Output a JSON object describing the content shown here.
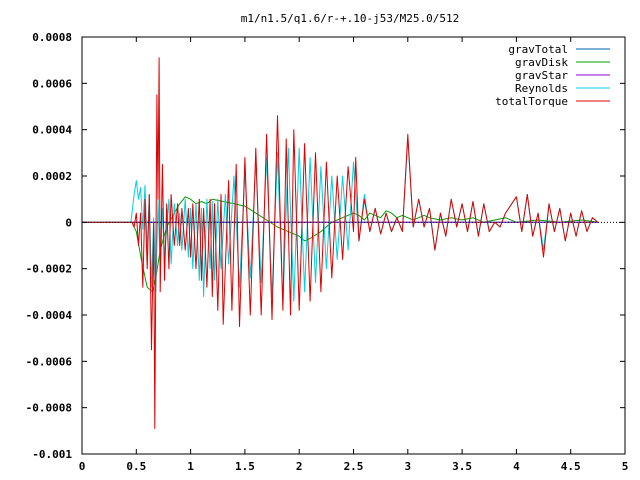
{
  "chart_data": {
    "type": "line",
    "title": "m1/n1.5/q1.6/r-+.10-j53/M25.0/512",
    "xlabel": "",
    "ylabel": "",
    "xlim": [
      0,
      5
    ],
    "ylim": [
      -0.001,
      0.0008
    ],
    "grid": false,
    "legend_position": "top-right",
    "x_ticks": [
      "0",
      "0.5",
      "1",
      "1.5",
      "2",
      "2.5",
      "3",
      "3.5",
      "4",
      "4.5",
      "5"
    ],
    "y_ticks": [
      "0.0008",
      "0.0006",
      "0.0004",
      "0.0002",
      "0",
      "-0.0002",
      "-0.0004",
      "-0.0006",
      "-0.0008",
      "-0.001"
    ],
    "series": [
      {
        "name": "gravTotal",
        "color": "#0060ad",
        "points": [
          [
            0,
            0
          ],
          [
            0.46,
            0
          ],
          [
            4.75,
            0
          ]
        ]
      },
      {
        "name": "gravDisk",
        "color": "#009e00",
        "points": [
          [
            0,
            0
          ],
          [
            0.46,
            0
          ],
          [
            0.5,
            -4e-05
          ],
          [
            0.55,
            -0.00017
          ],
          [
            0.6,
            -0.00028
          ],
          [
            0.65,
            -0.0003
          ],
          [
            0.68,
            -0.00024
          ],
          [
            0.72,
            -0.00012
          ],
          [
            0.78,
            -2e-05
          ],
          [
            0.85,
            4e-05
          ],
          [
            0.9,
            8e-05
          ],
          [
            0.95,
            0.00011
          ],
          [
            1.0,
            0.0001
          ],
          [
            1.05,
            8e-05
          ],
          [
            1.1,
            9e-05
          ],
          [
            1.15,
            8e-05
          ],
          [
            1.2,
            0.0001
          ],
          [
            1.3,
            9e-05
          ],
          [
            1.4,
            8e-05
          ],
          [
            1.5,
            7e-05
          ],
          [
            1.6,
            4e-05
          ],
          [
            1.7,
            1e-05
          ],
          [
            1.8,
            -2e-05
          ],
          [
            1.9,
            -4e-05
          ],
          [
            2.0,
            -6e-05
          ],
          [
            2.05,
            -8e-05
          ],
          [
            2.1,
            -7e-05
          ],
          [
            2.2,
            -4e-05
          ],
          [
            2.3,
            0.0
          ],
          [
            2.4,
            2e-05
          ],
          [
            2.5,
            4e-05
          ],
          [
            2.55,
            3e-05
          ],
          [
            2.6,
            1e-05
          ],
          [
            2.65,
            4e-05
          ],
          [
            2.7,
            3e-05
          ],
          [
            2.75,
            2e-05
          ],
          [
            2.8,
            5e-05
          ],
          [
            2.85,
            4e-05
          ],
          [
            2.9,
            2e-05
          ],
          [
            2.95,
            3e-05
          ],
          [
            3.0,
            2e-05
          ],
          [
            3.05,
            1e-05
          ],
          [
            3.1,
            2e-05
          ],
          [
            3.15,
            3e-05
          ],
          [
            3.2,
            2e-05
          ],
          [
            3.3,
            1e-05
          ],
          [
            3.4,
            2e-05
          ],
          [
            3.5,
            1e-05
          ],
          [
            3.6,
            2e-05
          ],
          [
            3.7,
            0.0
          ],
          [
            3.8,
            1e-05
          ],
          [
            3.9,
            2e-05
          ],
          [
            4.0,
            0.0
          ],
          [
            4.2,
            1e-05
          ],
          [
            4.4,
            0.0
          ],
          [
            4.6,
            1e-05
          ],
          [
            4.75,
            0.0
          ]
        ]
      },
      {
        "name": "gravStar",
        "color": "#9400d3",
        "points": [
          [
            0,
            0
          ],
          [
            0.46,
            0
          ],
          [
            4.75,
            0
          ]
        ]
      },
      {
        "name": "Reynolds",
        "color": "#00d0e0",
        "points": [
          [
            0,
            0
          ],
          [
            0.45,
            0
          ],
          [
            0.48,
            0.00012
          ],
          [
            0.5,
            0.00018
          ],
          [
            0.52,
            0.0001
          ],
          [
            0.54,
            0.00015
          ],
          [
            0.56,
            -3e-05
          ],
          [
            0.58,
            0.00016
          ],
          [
            0.6,
            -0.00012
          ],
          [
            0.62,
            0.00012
          ],
          [
            0.64,
            -0.00028
          ],
          [
            0.66,
            2e-05
          ],
          [
            0.68,
            -0.0003
          ],
          [
            0.7,
            0.0001
          ],
          [
            0.72,
            -0.0002
          ],
          [
            0.74,
            6e-05
          ],
          [
            0.76,
            -0.00015
          ],
          [
            0.8,
            0.0001
          ],
          [
            0.82,
            -0.00018
          ],
          [
            0.85,
            8e-05
          ],
          [
            0.88,
            -0.0001
          ],
          [
            0.9,
            4e-05
          ],
          [
            0.92,
            -0.00012
          ],
          [
            0.95,
            0.0001
          ],
          [
            0.98,
            -0.00015
          ],
          [
            1.0,
            6e-05
          ],
          [
            1.02,
            -0.0002
          ],
          [
            1.05,
            8e-05
          ],
          [
            1.08,
            -0.00025
          ],
          [
            1.1,
            6e-05
          ],
          [
            1.12,
            -0.00032
          ],
          [
            1.15,
            0.0001
          ],
          [
            1.18,
            -0.0002
          ],
          [
            1.2,
            9e-05
          ],
          [
            1.22,
            -0.00025
          ],
          [
            1.25,
            0.0001
          ],
          [
            1.28,
            -0.0002
          ],
          [
            1.32,
            0.00012
          ],
          [
            1.35,
            -0.00018
          ],
          [
            1.4,
            0.0002
          ],
          [
            1.45,
            -0.00028
          ],
          [
            1.5,
            0.00022
          ],
          [
            1.55,
            -0.00024
          ],
          [
            1.6,
            0.00026
          ],
          [
            1.65,
            -0.00026
          ],
          [
            1.7,
            0.00028
          ],
          [
            1.75,
            -0.00032
          ],
          [
            1.8,
            0.0003
          ],
          [
            1.85,
            -0.00036
          ],
          [
            1.9,
            0.00032
          ],
          [
            1.95,
            -0.00034
          ],
          [
            2.0,
            0.00032
          ],
          [
            2.05,
            -0.0003
          ],
          [
            2.1,
            0.00028
          ],
          [
            2.15,
            -0.00026
          ],
          [
            2.2,
            0.00024
          ],
          [
            2.25,
            -0.0002
          ],
          [
            2.3,
            0.0002
          ],
          [
            2.35,
            -0.00016
          ],
          [
            2.4,
            0.0002
          ],
          [
            2.45,
            -0.00012
          ],
          [
            2.5,
            0.00026
          ],
          [
            2.55,
            -8e-05
          ],
          [
            2.6,
            0.00012
          ],
          [
            2.65,
            -4e-05
          ],
          [
            2.7,
            6e-05
          ],
          [
            2.75,
            -5e-05
          ],
          [
            2.8,
            4e-05
          ],
          [
            2.85,
            -4e-05
          ],
          [
            2.9,
            2e-05
          ],
          [
            2.95,
            -4e-05
          ],
          [
            3.0,
            0.00036
          ],
          [
            3.05,
            -2e-05
          ],
          [
            3.1,
            0.0001
          ],
          [
            3.15,
            -2e-05
          ],
          [
            3.2,
            6e-05
          ],
          [
            3.25,
            -0.00012
          ],
          [
            3.3,
            4e-05
          ],
          [
            3.35,
            -6e-05
          ],
          [
            3.4,
            0.0001
          ],
          [
            3.45,
            -2e-05
          ],
          [
            3.5,
            8e-05
          ],
          [
            3.55,
            -4e-05
          ],
          [
            3.6,
            9e-05
          ],
          [
            3.65,
            -6e-05
          ],
          [
            3.7,
            8e-05
          ],
          [
            3.75,
            -4e-05
          ],
          [
            3.8,
            0.0
          ],
          [
            3.85,
            -2e-05
          ],
          [
            3.9,
            4e-05
          ],
          [
            4.0,
            0.00011
          ],
          [
            4.05,
            -4e-05
          ],
          [
            4.1,
            0.00012
          ],
          [
            4.15,
            -6e-05
          ],
          [
            4.2,
            4e-05
          ],
          [
            4.25,
            -0.00012
          ],
          [
            4.3,
            8e-05
          ],
          [
            4.35,
            -4e-05
          ],
          [
            4.4,
            6e-05
          ],
          [
            4.45,
            -8e-05
          ],
          [
            4.5,
            4e-05
          ],
          [
            4.55,
            -6e-05
          ],
          [
            4.6,
            5e-05
          ],
          [
            4.65,
            -4e-05
          ],
          [
            4.7,
            2e-05
          ],
          [
            4.75,
            0.0
          ]
        ]
      },
      {
        "name": "totalTorque",
        "color": "#e00000",
        "points": [
          [
            0,
            0
          ],
          [
            0.46,
            0
          ],
          [
            0.48,
            -2e-05
          ],
          [
            0.5,
            4e-05
          ],
          [
            0.52,
            -0.0001
          ],
          [
            0.54,
            4e-05
          ],
          [
            0.56,
            -0.00028
          ],
          [
            0.58,
            0.0001
          ],
          [
            0.6,
            -0.0002
          ],
          [
            0.62,
            0.00012
          ],
          [
            0.64,
            -0.00055
          ],
          [
            0.66,
            0.0
          ],
          [
            0.67,
            -0.00089
          ],
          [
            0.69,
            0.00055
          ],
          [
            0.7,
            0.0001
          ],
          [
            0.71,
            0.00071
          ],
          [
            0.72,
            -0.0003
          ],
          [
            0.74,
            0.00025
          ],
          [
            0.76,
            -0.00025
          ],
          [
            0.78,
            8e-05
          ],
          [
            0.8,
            -0.0002
          ],
          [
            0.82,
            0.00012
          ],
          [
            0.85,
            -0.0001
          ],
          [
            0.88,
            8e-05
          ],
          [
            0.9,
            -0.0001
          ],
          [
            0.92,
            6e-05
          ],
          [
            0.95,
            -0.00012
          ],
          [
            0.98,
            6e-05
          ],
          [
            1.0,
            -0.00015
          ],
          [
            1.02,
            8e-05
          ],
          [
            1.05,
            -0.0002
          ],
          [
            1.08,
            0.0001
          ],
          [
            1.1,
            -0.00025
          ],
          [
            1.12,
            6e-05
          ],
          [
            1.15,
            -0.00028
          ],
          [
            1.18,
            0.0001
          ],
          [
            1.2,
            -0.00032
          ],
          [
            1.22,
            8e-05
          ],
          [
            1.25,
            -0.00038
          ],
          [
            1.28,
            0.00012
          ],
          [
            1.3,
            -0.00044
          ],
          [
            1.35,
            0.00018
          ],
          [
            1.38,
            -0.00038
          ],
          [
            1.42,
            0.00025
          ],
          [
            1.45,
            -0.00045
          ],
          [
            1.5,
            0.00028
          ],
          [
            1.55,
            -0.0004
          ],
          [
            1.6,
            0.00032
          ],
          [
            1.65,
            -0.0004
          ],
          [
            1.7,
            0.00038
          ],
          [
            1.75,
            -0.00042
          ],
          [
            1.8,
            0.00046
          ],
          [
            1.85,
            -0.00038
          ],
          [
            1.88,
            0.00036
          ],
          [
            1.92,
            -0.0004
          ],
          [
            1.95,
            0.0004
          ],
          [
            2.0,
            -0.00038
          ],
          [
            2.05,
            0.00034
          ],
          [
            2.1,
            -0.00034
          ],
          [
            2.15,
            0.0003
          ],
          [
            2.2,
            -0.0003
          ],
          [
            2.25,
            0.00026
          ],
          [
            2.3,
            -0.00024
          ],
          [
            2.35,
            0.0002
          ],
          [
            2.4,
            -0.00016
          ],
          [
            2.45,
            0.00024
          ],
          [
            2.5,
            -4e-05
          ],
          [
            2.52,
            0.00028
          ],
          [
            2.55,
            -8e-05
          ],
          [
            2.6,
            0.0001
          ],
          [
            2.65,
            -4e-05
          ],
          [
            2.7,
            6e-05
          ],
          [
            2.75,
            -5e-05
          ],
          [
            2.8,
            4e-05
          ],
          [
            2.85,
            -4e-05
          ],
          [
            2.9,
            2e-05
          ],
          [
            2.95,
            -4e-05
          ],
          [
            3.0,
            0.00038
          ],
          [
            3.05,
            -2e-05
          ],
          [
            3.1,
            0.0001
          ],
          [
            3.15,
            -2e-05
          ],
          [
            3.2,
            6e-05
          ],
          [
            3.25,
            -0.00012
          ],
          [
            3.3,
            4e-05
          ],
          [
            3.35,
            -6e-05
          ],
          [
            3.4,
            0.0001
          ],
          [
            3.45,
            -2e-05
          ],
          [
            3.5,
            8e-05
          ],
          [
            3.55,
            -4e-05
          ],
          [
            3.6,
            9e-05
          ],
          [
            3.65,
            -6e-05
          ],
          [
            3.7,
            8e-05
          ],
          [
            3.75,
            -4e-05
          ],
          [
            3.8,
            0.0
          ],
          [
            3.85,
            -2e-05
          ],
          [
            3.9,
            4e-05
          ],
          [
            4.0,
            0.00011
          ],
          [
            4.05,
            -4e-05
          ],
          [
            4.1,
            0.00012
          ],
          [
            4.15,
            -6e-05
          ],
          [
            4.2,
            4e-05
          ],
          [
            4.25,
            -0.00015
          ],
          [
            4.3,
            8e-05
          ],
          [
            4.35,
            -4e-05
          ],
          [
            4.4,
            6e-05
          ],
          [
            4.45,
            -8e-05
          ],
          [
            4.5,
            4e-05
          ],
          [
            4.55,
            -6e-05
          ],
          [
            4.6,
            5e-05
          ],
          [
            4.65,
            -4e-05
          ],
          [
            4.7,
            2e-05
          ],
          [
            4.75,
            0.0
          ]
        ]
      }
    ]
  }
}
